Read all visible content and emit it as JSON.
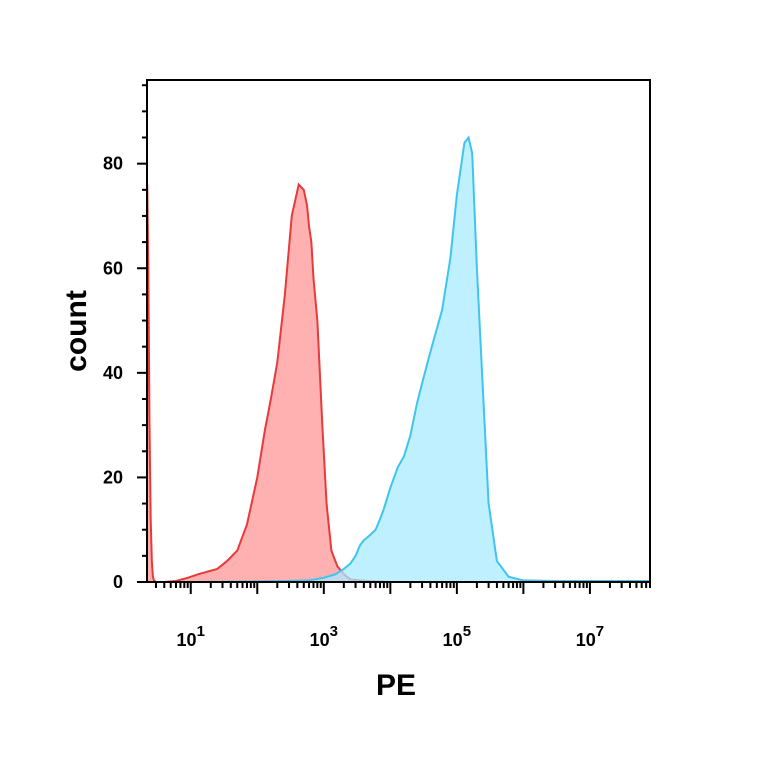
{
  "chart_data": {
    "type": "area",
    "xlabel": "PE",
    "ylabel": "count",
    "x_scale": "log",
    "xlim": [
      2.2,
      80000000
    ],
    "ylim": [
      0,
      96
    ],
    "y_ticks": [
      0,
      20,
      40,
      60,
      80
    ],
    "x_ticks": [
      {
        "value": 10,
        "base": "10",
        "exp": "1"
      },
      {
        "value": 1000,
        "base": "10",
        "exp": "3"
      },
      {
        "value": 100000,
        "base": "10",
        "exp": "5"
      },
      {
        "value": 10000000,
        "base": "10",
        "exp": "7"
      }
    ],
    "grid": false,
    "series": [
      {
        "color_fill": "#ffa3a3",
        "color_line": "#e83a3a",
        "x": [
          2.2,
          2.22,
          2.3,
          2.4,
          2.5,
          2.6,
          2.7,
          2.8,
          3,
          4,
          6,
          9,
          13,
          18,
          25,
          35,
          50,
          70,
          100,
          130,
          160,
          200,
          260,
          330,
          420,
          500,
          560,
          600,
          650,
          700,
          800,
          950,
          1100,
          1300,
          1600,
          2000,
          2500,
          3500,
          5000,
          7000,
          10000
        ],
        "y": [
          0,
          76,
          60,
          30,
          12,
          4,
          1,
          0.3,
          0,
          0,
          0.2,
          0.8,
          1.5,
          2,
          2.5,
          4,
          6,
          11,
          20,
          29,
          35,
          42,
          55,
          70,
          76,
          75,
          72,
          68,
          65,
          58,
          50,
          30,
          15,
          6,
          3,
          1.5,
          0.5,
          0.3,
          0.2,
          0.1,
          0
        ]
      },
      {
        "color_fill": "#a8ebff",
        "color_line": "#3fc4ee",
        "x": [
          10,
          100,
          600,
          1000,
          1500,
          2000,
          2500,
          3000,
          3500,
          4000,
          5000,
          6000,
          7000,
          8000,
          10000,
          13000,
          16000,
          20000,
          25000,
          30000,
          40000,
          60000,
          80000,
          100000,
          130000,
          150000,
          170000,
          200000,
          250000,
          300000,
          400000,
          600000,
          1000000,
          3000000,
          10000000,
          80000000
        ],
        "y": [
          0,
          0.1,
          0.3,
          0.8,
          1.5,
          2.5,
          3.5,
          5,
          7,
          8,
          9,
          10,
          12,
          14,
          18,
          22,
          24,
          28,
          34,
          38,
          44,
          52,
          62,
          74,
          84,
          85,
          82,
          60,
          35,
          15,
          4,
          1,
          0.3,
          0.2,
          0.2,
          0.2
        ]
      }
    ]
  }
}
